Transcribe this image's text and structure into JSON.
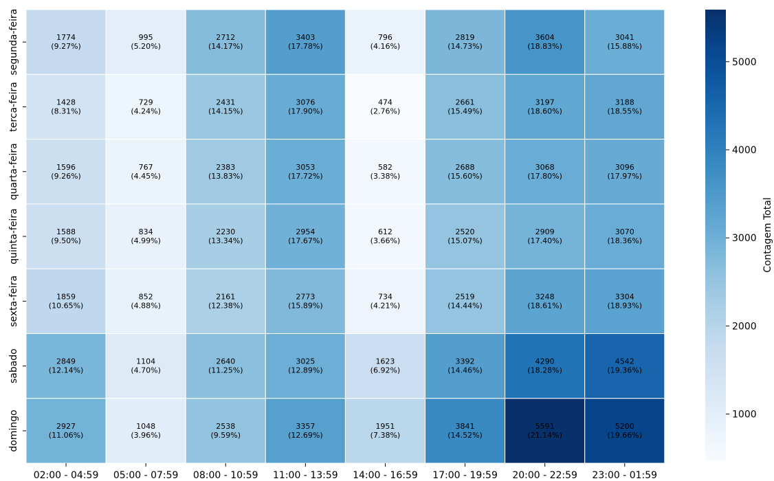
{
  "chart_data": {
    "type": "heatmap",
    "x_categories": [
      "02:00 - 04:59",
      "05:00 - 07:59",
      "08:00 - 10:59",
      "11:00 - 13:59",
      "14:00 - 16:59",
      "17:00 - 19:59",
      "20:00 - 22:59",
      "23:00 - 01:59"
    ],
    "y_categories": [
      "segunda-feira",
      "terca-feira",
      "quarta-feira",
      "quinta-feira",
      "sexta-feira",
      "sabado",
      "domingo"
    ],
    "values": [
      [
        1774,
        995,
        2712,
        3403,
        796,
        2819,
        3604,
        3041
      ],
      [
        1428,
        729,
        2431,
        3076,
        474,
        2661,
        3197,
        3188
      ],
      [
        1596,
        767,
        2383,
        3053,
        582,
        2688,
        3068,
        3096
      ],
      [
        1588,
        834,
        2230,
        2954,
        612,
        2520,
        2909,
        3070
      ],
      [
        1859,
        852,
        2161,
        2773,
        734,
        2519,
        3248,
        3304
      ],
      [
        2849,
        1104,
        2640,
        3025,
        1623,
        3392,
        4290,
        4542
      ],
      [
        2927,
        1048,
        2538,
        3357,
        1951,
        3841,
        5591,
        5200
      ]
    ],
    "percentages": [
      [
        "(9.27%)",
        "(5.20%)",
        "(14.17%)",
        "(17.78%)",
        "(4.16%)",
        "(14.73%)",
        "(18.83%)",
        "(15.88%)"
      ],
      [
        "(8.31%)",
        "(4.24%)",
        "(14.15%)",
        "(17.90%)",
        "(2.76%)",
        "(15.49%)",
        "(18.60%)",
        "(18.55%)"
      ],
      [
        "(9.26%)",
        "(4.45%)",
        "(13.83%)",
        "(17.72%)",
        "(3.38%)",
        "(15.60%)",
        "(17.80%)",
        "(17.97%)"
      ],
      [
        "(9.50%)",
        "(4.99%)",
        "(13.34%)",
        "(17.67%)",
        "(3.66%)",
        "(15.07%)",
        "(17.40%)",
        "(18.36%)"
      ],
      [
        "(10.65%)",
        "(4.88%)",
        "(12.38%)",
        "(15.89%)",
        "(4.21%)",
        "(14.44%)",
        "(18.61%)",
        "(18.93%)"
      ],
      [
        "(12.14%)",
        "(4.70%)",
        "(11.25%)",
        "(12.89%)",
        "(6.92%)",
        "(14.46%)",
        "(18.28%)",
        "(19.36%)"
      ],
      [
        "(11.06%)",
        "(3.96%)",
        "(9.59%)",
        "(12.69%)",
        "(7.38%)",
        "(14.52%)",
        "(21.14%)",
        "(19.66%)"
      ]
    ],
    "colorbar": {
      "label": "Contagem Total",
      "min": 474,
      "max": 5591,
      "ticks": [
        "1000",
        "2000",
        "3000",
        "4000",
        "5000"
      ],
      "colormap": "Blues"
    },
    "colors": {
      "light": "#f7fbff",
      "mid": "#6baed6",
      "dark": "#08306b",
      "grid_line": "#ffffff"
    },
    "grid": false
  }
}
